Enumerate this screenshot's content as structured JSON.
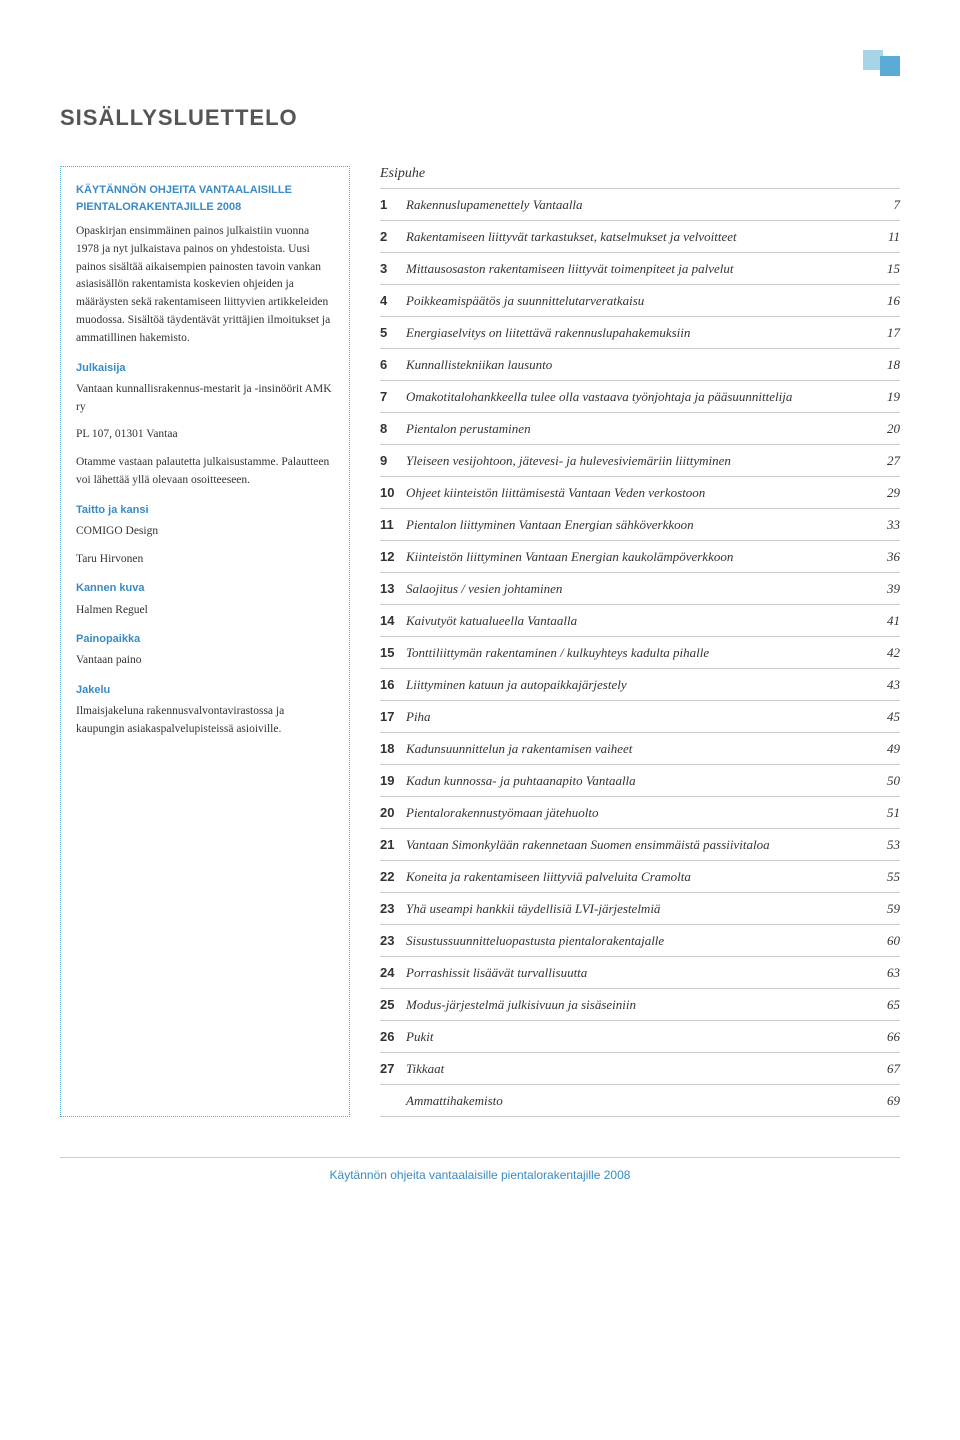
{
  "page_title": "SISÄLLYSLUETTELO",
  "left": {
    "intro_heading": "KÄYTÄNNÖN OHJEITA VANTAALAISILLE PIENTALORAKENTAJILLE 2008",
    "para1": "Opaskirjan ensimmäinen painos julkaistiin vuonna 1978 ja nyt julkaistava painos on yhdestoista. Uusi painos sisältää aikaisempien painosten tavoin vankan asiasisällön rakentamista koskevien ohjeiden ja määräysten sekä rakentamiseen liittyvien artikkeleiden muodossa. Sisältöä täydentävät yrittäjien ilmoitukset ja ammatillinen hakemisto.",
    "publisher_head": "Julkaisija",
    "publisher_body1": "Vantaan kunnallisrakennus-mestarit ja -insinöörit AMK ry",
    "publisher_body2": "PL 107, 01301 Vantaa",
    "feedback": "Otamme vastaan palautetta julkaisustamme. Palautteen voi lähettää yllä olevaan osoitteeseen.",
    "layout_head": "Taitto ja kansi",
    "layout_body1": "COMIGO Design",
    "layout_body2": "Taru Hirvonen",
    "cover_head": "Kannen kuva",
    "cover_body": "Halmen Reguel",
    "print_head": "Painopaikka",
    "print_body": "Vantaan paino",
    "dist_head": "Jakelu",
    "dist_body": "Ilmaisjakeluna rakennusvalvontavirastossa ja kaupungin asiakaspalvelupisteissä asioiville."
  },
  "toc_heading": "Esipuhe",
  "toc": [
    {
      "num": "1",
      "title": "Rakennuslupamenettely Vantaalla",
      "page": "7"
    },
    {
      "num": "2",
      "title": "Rakentamiseen liittyvät tarkastukset, katselmukset ja velvoitteet",
      "page": "11"
    },
    {
      "num": "3",
      "title": "Mittausosaston rakentamiseen liittyvät toimenpiteet ja palvelut",
      "page": "15"
    },
    {
      "num": "4",
      "title": "Poikkeamispäätös ja suunnittelutarveratkaisu",
      "page": "16"
    },
    {
      "num": "5",
      "title": "Energiaselvitys on liitettävä rakennuslupahakemuksiin",
      "page": "17"
    },
    {
      "num": "6",
      "title": "Kunnallistekniikan lausunto",
      "page": "18"
    },
    {
      "num": "7",
      "title": "Omakotitalohankkeella tulee olla vastaava työnjohtaja ja pääsuunnittelija",
      "page": "19"
    },
    {
      "num": "8",
      "title": "Pientalon perustaminen",
      "page": "20"
    },
    {
      "num": "9",
      "title": "Yleiseen vesijohtoon, jätevesi- ja hulevesiviemäriin liittyminen",
      "page": "27"
    },
    {
      "num": "10",
      "title": "Ohjeet kiinteistön liittämisestä Vantaan Veden verkostoon",
      "page": "29"
    },
    {
      "num": "11",
      "title": "Pientalon liittyminen Vantaan Energian sähköverkkoon",
      "page": "33"
    },
    {
      "num": "12",
      "title": "Kiinteistön liittyminen Vantaan Energian kaukolämpöverkkoon",
      "page": "36"
    },
    {
      "num": "13",
      "title": "Salaojitus / vesien johtaminen",
      "page": "39"
    },
    {
      "num": "14",
      "title": "Kaivutyöt katualueella Vantaalla",
      "page": "41"
    },
    {
      "num": "15",
      "title": "Tonttiliittymän rakentaminen / kulkuyhteys kadulta pihalle",
      "page": "42"
    },
    {
      "num": "16",
      "title": "Liittyminen katuun ja autopaikkajärjestely",
      "page": "43"
    },
    {
      "num": "17",
      "title": "Piha",
      "page": "45"
    },
    {
      "num": "18",
      "title": "Kadunsuunnittelun ja rakentamisen vaiheet",
      "page": "49"
    },
    {
      "num": "19",
      "title": "Kadun kunnossa- ja puhtaanapito Vantaalla",
      "page": "50"
    },
    {
      "num": "20",
      "title": "Pientalorakennustyömaan jätehuolto",
      "page": "51"
    },
    {
      "num": "21",
      "title": "Vantaan Simonkylään rakennetaan Suomen ensimmäistä passiivitaloa",
      "page": "53"
    },
    {
      "num": "22",
      "title": "Koneita ja rakentamiseen liittyviä palveluita Cramolta",
      "page": "55"
    },
    {
      "num": "23",
      "title": "Yhä useampi hankkii täydellisiä LVI-järjestelmiä",
      "page": "59"
    },
    {
      "num": "23",
      "title": "Sisustussuunnitteluopastusta pientalorakentajalle",
      "page": "60"
    },
    {
      "num": "24",
      "title": "Porrashissit lisäävät turvallisuutta",
      "page": "63"
    },
    {
      "num": "25",
      "title": "Modus-järjestelmä julkisivuun ja sisäseiniin",
      "page": "65"
    },
    {
      "num": "26",
      "title": "Pukit",
      "page": "66"
    },
    {
      "num": "27",
      "title": "Tikkaat",
      "page": "67"
    }
  ],
  "toc_final": {
    "title": "Ammattihakemisto",
    "page": "69"
  },
  "footer": "Käytännön ohjeita vantaalaisille pientalorakentajille 2008",
  "colors": {
    "accent": "#5aabd6",
    "accent_light": "#a8d4e8",
    "heading": "#3a8bc4"
  }
}
